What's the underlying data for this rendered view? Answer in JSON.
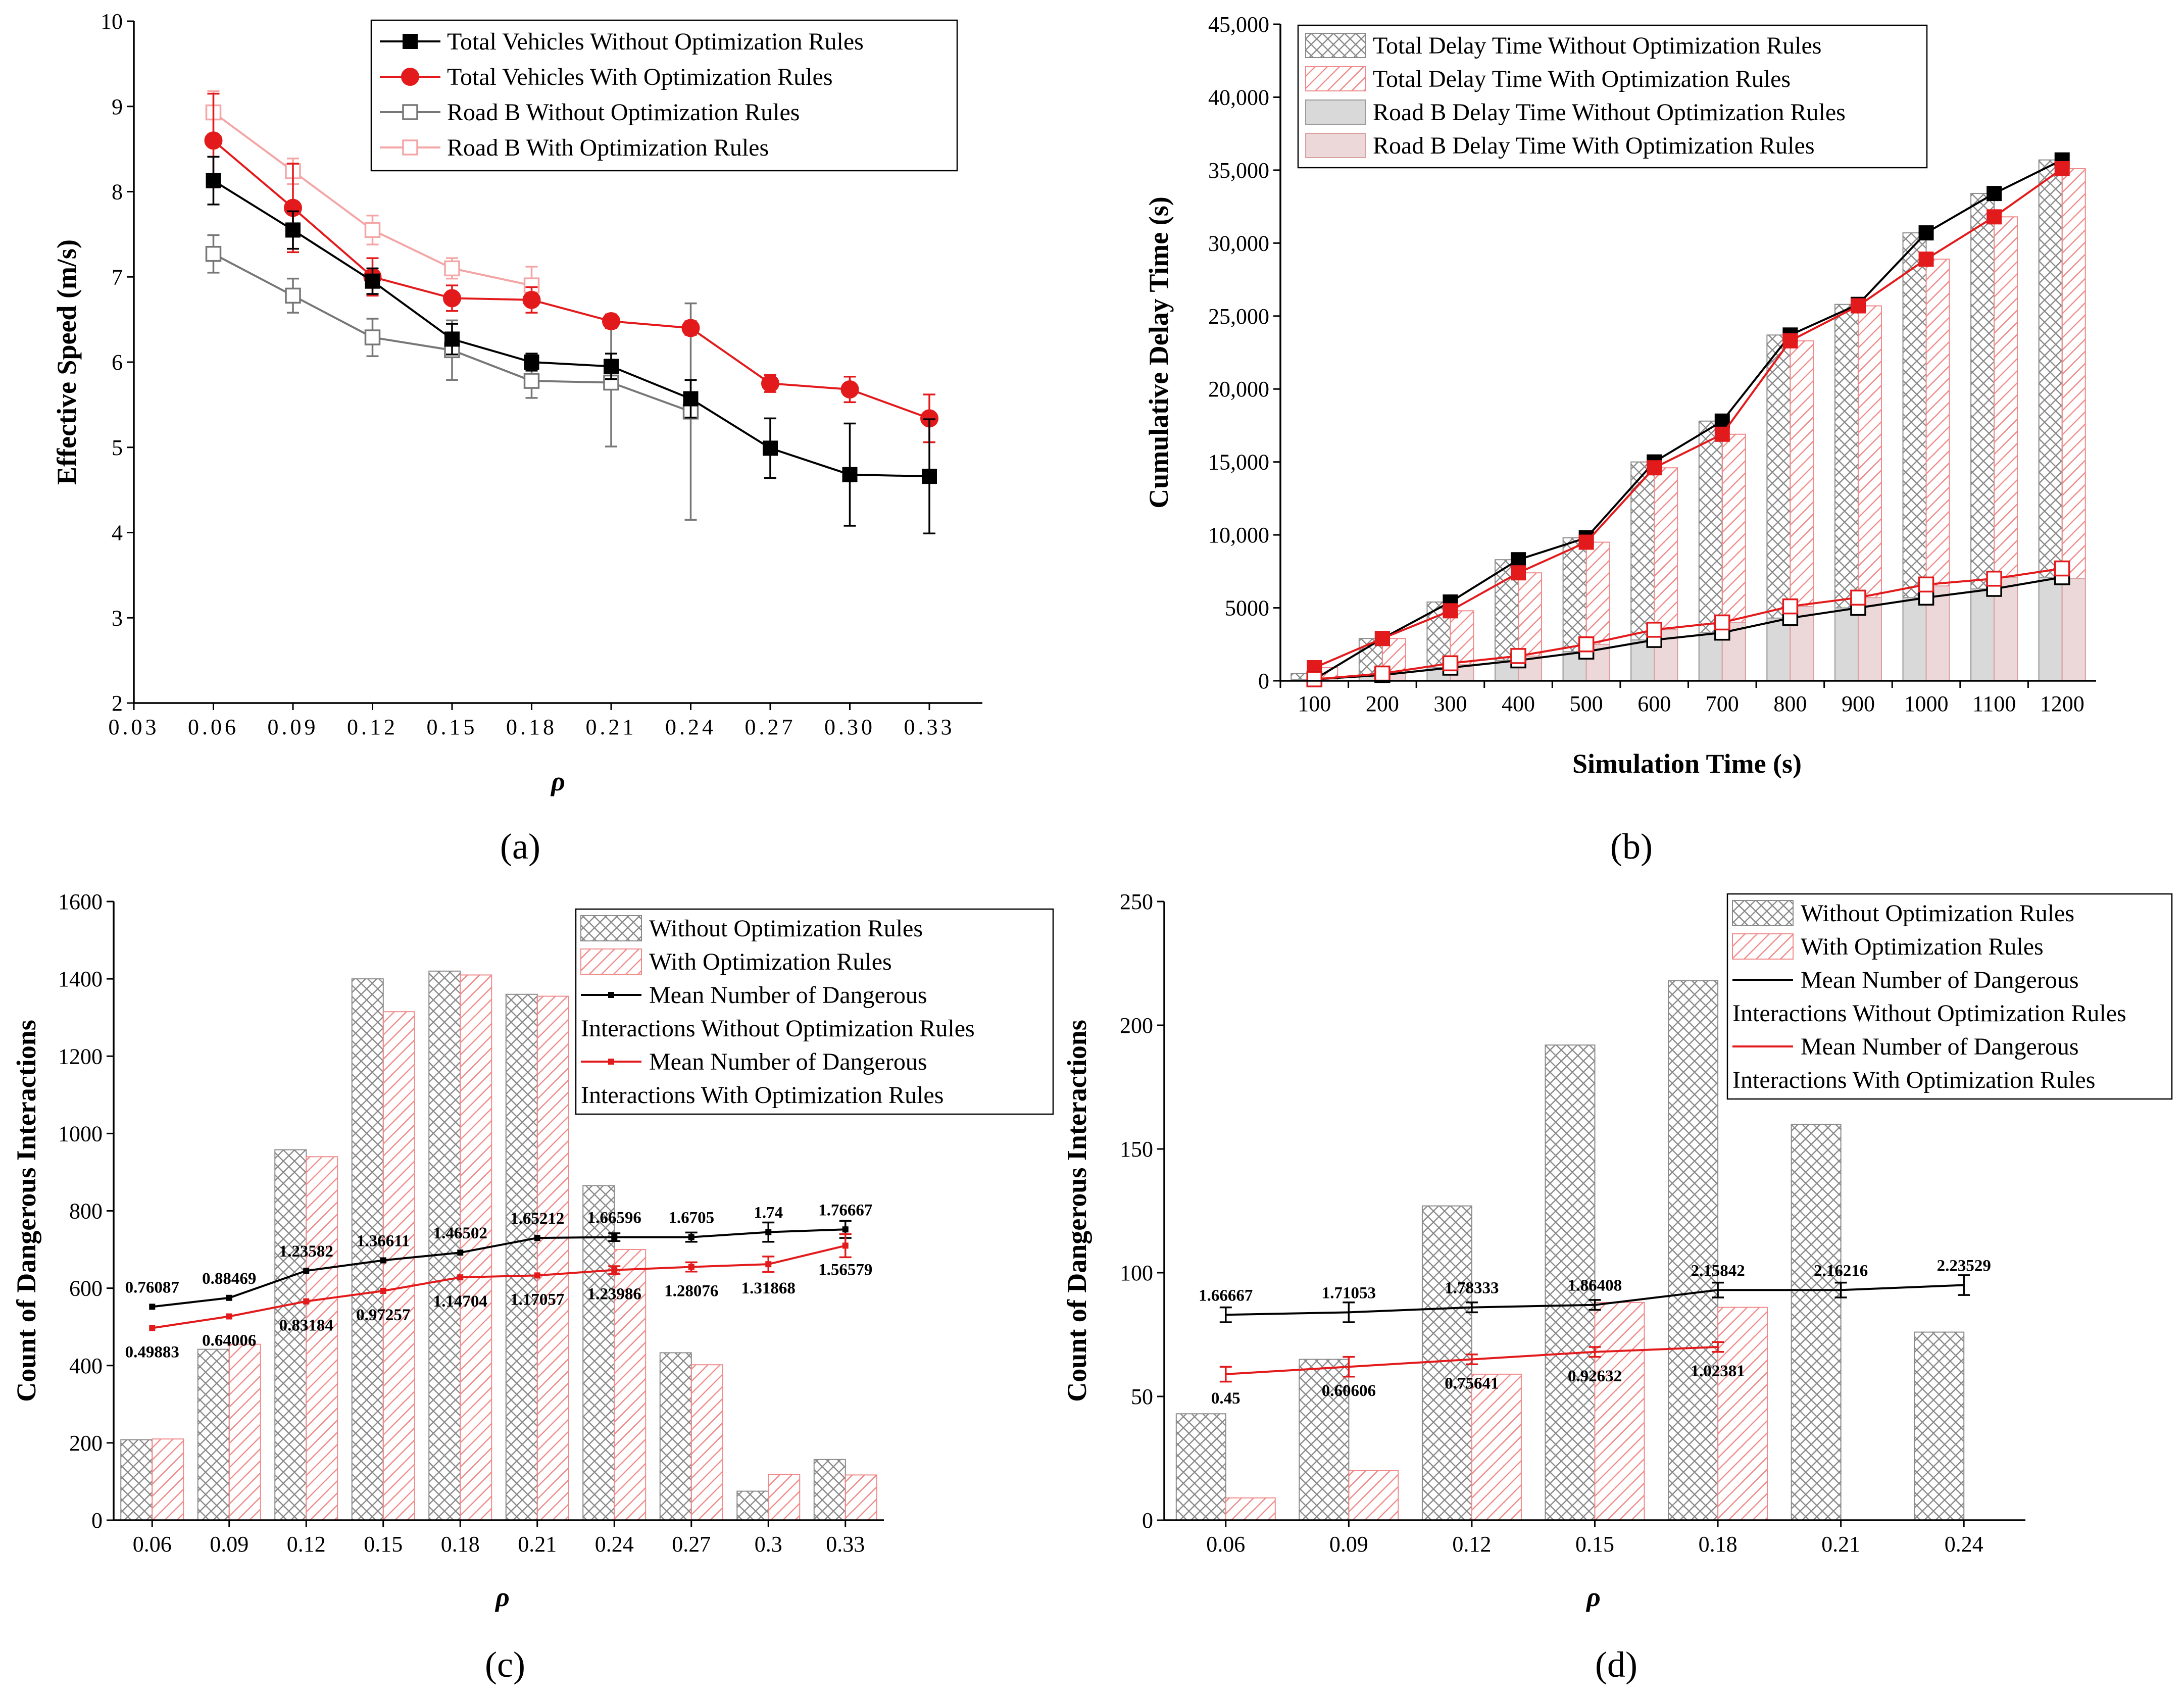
{
  "chart_data": [
    {
      "id": "a",
      "type": "line",
      "panel_label": "(a)",
      "xlabel": "ρ",
      "ylabel": "Effective Speed (m/s)",
      "xlim": [
        0.03,
        0.35
      ],
      "ylim": [
        2,
        10
      ],
      "x_ticks": [
        0.03,
        0.06,
        0.09,
        0.12,
        0.15,
        0.18,
        0.21,
        0.24,
        0.27,
        0.3,
        0.33
      ],
      "x_tick_labels": [
        "0.03",
        "0.06",
        "0.09",
        "0.12",
        "0.15",
        "0.18",
        "0.21",
        "0.24",
        "0.27",
        "0.30",
        "0.33"
      ],
      "y_ticks": [
        2,
        3,
        4,
        5,
        6,
        7,
        8,
        9,
        10
      ],
      "y_tick_labels": [
        "2",
        "3",
        "4",
        "5",
        "6",
        "7",
        "8",
        "9",
        "10"
      ],
      "legend_position": "top-right",
      "series": [
        {
          "name": "Total Vehicles Without Optimization Rules",
          "color": "#000000",
          "marker": "square-filled",
          "x": [
            0.06,
            0.09,
            0.12,
            0.15,
            0.18,
            0.21,
            0.24,
            0.27,
            0.3,
            0.33
          ],
          "values": [
            8.13,
            7.55,
            6.95,
            6.27,
            6.0,
            5.95,
            5.57,
            4.99,
            4.68,
            4.66
          ],
          "errors": [
            0.28,
            0.22,
            0.15,
            0.18,
            0.1,
            0.15,
            0.22,
            0.35,
            0.6,
            0.67
          ]
        },
        {
          "name": "Total Vehicles With Optimization Rules",
          "color": "#e31a1c",
          "marker": "circle-filled",
          "x": [
            0.06,
            0.09,
            0.12,
            0.15,
            0.18,
            0.21,
            0.24,
            0.27,
            0.3,
            0.33
          ],
          "values": [
            8.6,
            7.81,
            7.0,
            6.75,
            6.73,
            6.48,
            6.4,
            5.75,
            5.68,
            5.34
          ],
          "errors": [
            0.55,
            0.52,
            0.22,
            0.15,
            0.15,
            0.08,
            0.08,
            0.1,
            0.15,
            0.28
          ]
        },
        {
          "name": "Road B Without Optimization Rules",
          "color": "#777777",
          "marker": "square-open",
          "x": [
            0.06,
            0.09,
            0.12,
            0.15,
            0.18,
            0.21,
            0.24
          ],
          "values": [
            7.27,
            6.78,
            6.29,
            6.14,
            5.78,
            5.76,
            5.42
          ],
          "errors": [
            0.22,
            0.2,
            0.22,
            0.35,
            0.2,
            0.75,
            1.27
          ]
        },
        {
          "name": "Road B With Optimization Rules",
          "color": "#f4a6a6",
          "marker": "square-open",
          "x": [
            0.06,
            0.09,
            0.12,
            0.15,
            0.18
          ],
          "values": [
            8.93,
            8.24,
            7.55,
            7.1,
            6.9
          ],
          "errors": [
            0.25,
            0.15,
            0.17,
            0.12,
            0.22
          ]
        }
      ]
    },
    {
      "id": "b",
      "type": "bar",
      "panel_label": "(b)",
      "xlabel": "Simulation Time (s)",
      "ylabel": "Cumulative Delay Time (s)",
      "ylim": [
        0,
        45000
      ],
      "categories": [
        "100",
        "200",
        "300",
        "400",
        "500",
        "600",
        "700",
        "800",
        "900",
        "1000",
        "1100",
        "1200"
      ],
      "y_ticks": [
        0,
        5000,
        10000,
        15000,
        20000,
        25000,
        30000,
        35000,
        40000,
        45000
      ],
      "y_tick_labels": [
        "0",
        "5000",
        "10,000",
        "15,000",
        "20,000",
        "25,000",
        "30,000",
        "35,000",
        "40,000",
        "45,000"
      ],
      "legend_position": "top-left",
      "series": [
        {
          "name": "Total Delay Time Without Optimization Rules",
          "style": "crosshatch-gray",
          "values": [
            500,
            2900,
            5400,
            8300,
            9800,
            15000,
            17800,
            23700,
            25800,
            30700,
            33400,
            35700
          ]
        },
        {
          "name": "Total Delay Time With Optimization Rules",
          "style": "diagonal-pink",
          "values": [
            900,
            2900,
            4800,
            7400,
            9500,
            14600,
            16900,
            23300,
            25700,
            28900,
            31800,
            35100
          ]
        },
        {
          "name": "Road B Delay Time Without Optimization Rules",
          "style": "solid-gray",
          "values": [
            100,
            400,
            900,
            1400,
            2000,
            2800,
            3300,
            4300,
            5000,
            5700,
            6300,
            7100
          ]
        },
        {
          "name": "Road B Delay Time With Optimization Rules",
          "style": "solid-pink",
          "values": [
            200,
            500,
            1100,
            1700,
            2500,
            3500,
            4000,
            5100,
            5700,
            6500,
            7100,
            7000
          ]
        }
      ],
      "lines": [
        {
          "name": "Total Without",
          "color": "#000000",
          "marker": "square-filled",
          "values": [
            100,
            2900,
            5400,
            8300,
            9800,
            15000,
            17800,
            23700,
            25800,
            30700,
            33400,
            35700
          ]
        },
        {
          "name": "Total With",
          "color": "#e31a1c",
          "marker": "square-filled",
          "values": [
            900,
            2900,
            4800,
            7400,
            9500,
            14600,
            16900,
            23300,
            25700,
            28900,
            31800,
            35100
          ]
        },
        {
          "name": "Road B Without",
          "color": "#000000",
          "marker": "square-open",
          "values": [
            100,
            400,
            900,
            1400,
            2000,
            2800,
            3300,
            4300,
            5000,
            5700,
            6300,
            7100
          ]
        },
        {
          "name": "Road B With",
          "color": "#e31a1c",
          "marker": "square-open",
          "values": [
            100,
            500,
            1200,
            1700,
            2500,
            3500,
            4000,
            5100,
            5700,
            6600,
            7000,
            7700
          ]
        }
      ]
    },
    {
      "id": "c",
      "type": "bar",
      "panel_label": "(c)",
      "xlabel": "ρ",
      "ylabel": "Count of  Dangerous Interactions",
      "ylim": [
        0,
        1600
      ],
      "categories": [
        "0.06",
        "0.09",
        "0.12",
        "0.15",
        "0.18",
        "0.21",
        "0.24",
        "0.27",
        "0.3",
        "0.33"
      ],
      "y_ticks": [
        0,
        200,
        400,
        600,
        800,
        1000,
        1200,
        1400,
        1600
      ],
      "y_tick_labels": [
        "0",
        "200",
        "400",
        "600",
        "800",
        "1000",
        "1200",
        "1400",
        "1600"
      ],
      "legend_position": "top-right",
      "legend_entries": [
        "Without Optimization Rules",
        "With Optimization Rules",
        "Mean Number of Dangerous",
        "Interactions Without Optimization Rules",
        "Mean Number of Dangerous",
        "Interactions With Optimization Rules"
      ],
      "series": [
        {
          "name": "Without Optimization Rules",
          "style": "crosshatch-gray",
          "values": [
            208,
            442,
            958,
            1400,
            1420,
            1360,
            865,
            433,
            75,
            157
          ]
        },
        {
          "name": "With Optimization Rules",
          "style": "diagonal-pink",
          "values": [
            210,
            455,
            940,
            1315,
            1410,
            1355,
            700,
            402,
            118,
            117
          ]
        }
      ],
      "lines": [
        {
          "name": "Mean Number of Dangerous Interactions Without Optimization Rules",
          "color": "#000000",
          "values": [
            552,
            575,
            645,
            672,
            692,
            730,
            732,
            732,
            745,
            752
          ],
          "errors": [
            0,
            0,
            0,
            0,
            0,
            0,
            10,
            12,
            25,
            22
          ],
          "labels": [
            "0.76087",
            "0.88469",
            "1.23582",
            "1.36611",
            "1.46502",
            "1.65212",
            "1.66596",
            "1.6705",
            "1.74",
            "1.76667"
          ]
        },
        {
          "name": "Mean Number of Dangerous Interactions With Optimization Rules",
          "color": "#e31a1c",
          "values": [
            497,
            527,
            566,
            593,
            628,
            633,
            647,
            655,
            662,
            710
          ],
          "errors": [
            0,
            0,
            0,
            0,
            0,
            0,
            10,
            12,
            20,
            30
          ],
          "labels": [
            "0.49883",
            "0.64006",
            "0.83184",
            "0.97257",
            "1.14704",
            "1.17057",
            "1.23986",
            "1.28076",
            "1.31868",
            "1.56579"
          ]
        }
      ]
    },
    {
      "id": "d",
      "type": "bar",
      "panel_label": "(d)",
      "xlabel": "ρ",
      "ylabel": "Count of Dangerous Interactions",
      "ylim": [
        0,
        250
      ],
      "categories": [
        "0.06",
        "0.09",
        "0.12",
        "0.15",
        "0.18",
        "0.21",
        "0.24"
      ],
      "y_ticks": [
        0,
        50,
        100,
        150,
        200,
        250
      ],
      "y_tick_labels": [
        "0",
        "50",
        "100",
        "150",
        "200",
        "250"
      ],
      "legend_position": "top-right",
      "legend_entries": [
        "Without Optimization Rules",
        "With Optimization Rules",
        "Mean Number of Dangerous",
        "Interactions Without Optimization Rules",
        "Mean Number of Dangerous",
        "Interactions With Optimization Rules"
      ],
      "series": [
        {
          "name": "Without Optimization Rules",
          "style": "crosshatch-gray",
          "values": [
            43,
            65,
            127,
            192,
            218,
            160,
            76
          ]
        },
        {
          "name": "With Optimization Rules",
          "style": "diagonal-pink",
          "values": [
            9,
            20,
            59,
            88,
            86,
            null,
            null
          ]
        }
      ],
      "lines": [
        {
          "name": "Mean Number of Dangerous Interactions Without Optimization Rules",
          "color": "#000000",
          "values": [
            83,
            84,
            86,
            87,
            93,
            93,
            95
          ],
          "errors": [
            3,
            4,
            2,
            2,
            3,
            3,
            4
          ],
          "labels": [
            "1.66667",
            "1.71053",
            "1.78333",
            "1.86408",
            "2.15842",
            "2.16216",
            "2.23529"
          ]
        },
        {
          "name": "Mean Number of Dangerous Interactions With Optimization Rules",
          "color": "#e31a1c",
          "values": [
            59,
            62,
            65,
            68,
            70
          ],
          "errors": [
            3,
            4,
            2,
            2,
            2
          ],
          "labels": [
            "0.45",
            "0.60606",
            "0.75641",
            "0.92632",
            "1.02381"
          ]
        }
      ]
    }
  ]
}
